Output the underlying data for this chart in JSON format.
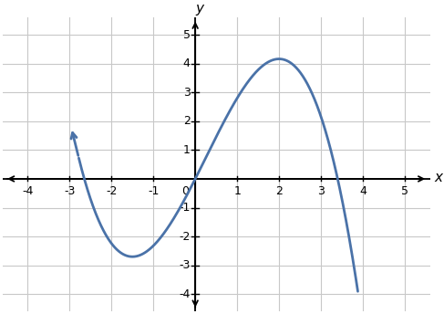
{
  "title": "",
  "xlabel": "x",
  "ylabel": "y",
  "xlim": [
    -4.6,
    5.6
  ],
  "ylim": [
    -4.6,
    5.6
  ],
  "xticks": [
    -4,
    -3,
    -2,
    -1,
    0,
    1,
    2,
    3,
    4,
    5
  ],
  "yticks": [
    -4,
    -3,
    -2,
    -1,
    1,
    2,
    3,
    4,
    5
  ],
  "curve_color": "#4a72a8",
  "curve_linewidth": 2.0,
  "background_color": "#ffffff",
  "grid_color": "#c8c8c8",
  "axis_color": "#000000",
  "x_start": -2.78,
  "x_end": 3.88,
  "a": -0.32,
  "b": 0.24,
  "c": 2.88,
  "d": 0.0
}
